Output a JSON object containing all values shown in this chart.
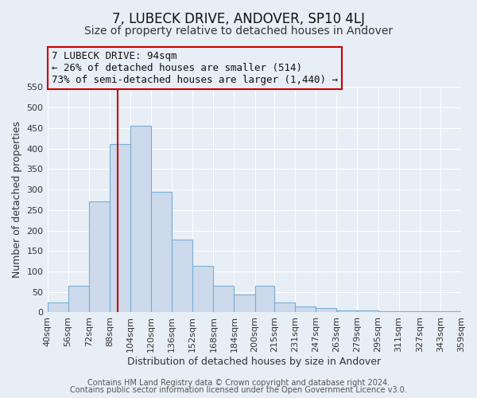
{
  "title": "7, LUBECK DRIVE, ANDOVER, SP10 4LJ",
  "subtitle": "Size of property relative to detached houses in Andover",
  "xlabel": "Distribution of detached houses by size in Andover",
  "ylabel": "Number of detached properties",
  "bar_edges": [
    40,
    56,
    72,
    88,
    104,
    120,
    136,
    152,
    168,
    184,
    200,
    215,
    231,
    247,
    263,
    279,
    295,
    311,
    327,
    343,
    359
  ],
  "bar_heights": [
    25,
    65,
    270,
    410,
    455,
    295,
    178,
    113,
    65,
    43,
    65,
    25,
    15,
    10,
    5,
    5,
    3,
    3,
    3,
    2
  ],
  "bar_color": "#ccdaec",
  "bar_edge_color": "#7aaed4",
  "property_line_x": 94,
  "property_line_color": "#cc0000",
  "ylim": [
    0,
    550
  ],
  "yticks": [
    0,
    50,
    100,
    150,
    200,
    250,
    300,
    350,
    400,
    450,
    500,
    550
  ],
  "annotation_line1": "7 LUBECK DRIVE: 94sqm",
  "annotation_line2": "← 26% of detached houses are smaller (514)",
  "annotation_line3": "73% of semi-detached houses are larger (1,440) →",
  "annotation_box_color": "#cc0000",
  "footer_line1": "Contains HM Land Registry data © Crown copyright and database right 2024.",
  "footer_line2": "Contains public sector information licensed under the Open Government Licence v3.0.",
  "bg_color": "#e8eef5",
  "grid_color": "#ffffff",
  "title_fontsize": 12,
  "subtitle_fontsize": 10,
  "axis_label_fontsize": 9,
  "tick_fontsize": 8,
  "annotation_fontsize": 9,
  "footer_fontsize": 7
}
